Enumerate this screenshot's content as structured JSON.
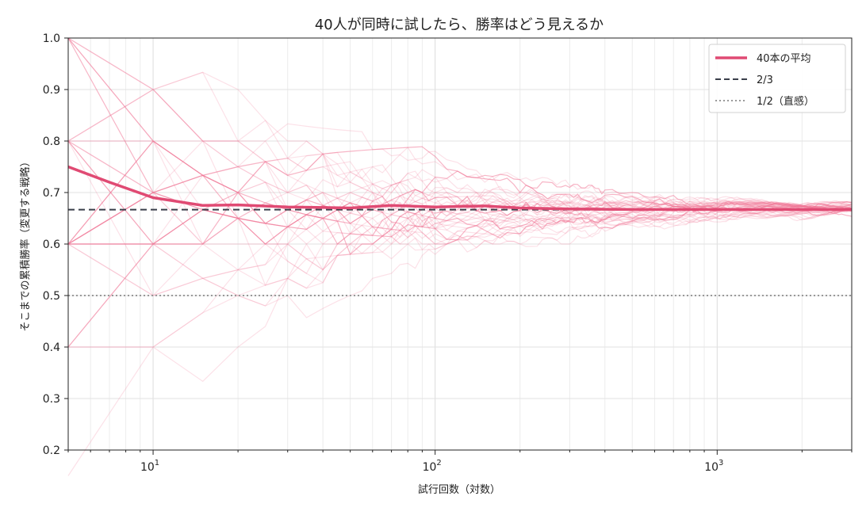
{
  "chart_data": {
    "type": "line",
    "title": "40人が同時に試したら、勝率はどう見えるか",
    "xlabel": "試行回数（対数）",
    "ylabel": "そこまでの累積勝率（変更する戦略）",
    "x_scale": "log",
    "xlim": [
      5,
      3000
    ],
    "ylim": [
      0.2,
      1.0
    ],
    "y_ticks": [
      "0.2",
      "0.3",
      "0.4",
      "0.5",
      "0.6",
      "0.7",
      "0.8",
      "0.9",
      "1.0"
    ],
    "x_ticks": [
      {
        "base": "10",
        "exp": "1"
      },
      {
        "base": "10",
        "exp": "2"
      },
      {
        "base": "10",
        "exp": "3"
      }
    ],
    "grid": true,
    "legend_position": "top-right",
    "legend": [
      {
        "label": "40本の平均",
        "style": "solid-thick",
        "color": "#e04a73"
      },
      {
        "label": "2/3",
        "style": "dashed",
        "color": "#3a3f4a"
      },
      {
        "label": "1/2（直感）",
        "style": "dotted",
        "color": "#999999"
      }
    ],
    "reference_lines": [
      {
        "label": "2/3",
        "y": 0.6667
      },
      {
        "label": "1/2（直感）",
        "y": 0.5
      }
    ],
    "trial_count": 40,
    "trial_color": "#f07898",
    "mean_series": {
      "name": "40本の平均",
      "x": [
        5,
        7,
        10,
        15,
        20,
        30,
        40,
        50,
        70,
        100,
        150,
        200,
        300,
        500,
        1000,
        2000,
        3000
      ],
      "y": [
        0.75,
        0.72,
        0.69,
        0.675,
        0.676,
        0.672,
        0.671,
        0.67,
        0.675,
        0.672,
        0.674,
        0.67,
        0.668,
        0.667,
        0.667,
        0.667,
        0.667
      ]
    },
    "individual_series_sample": [
      {
        "x": [
          5,
          10,
          15,
          20,
          30,
          40,
          60,
          100,
          200,
          500,
          1000,
          3000
        ],
        "y": [
          1.0,
          0.5,
          0.6,
          0.55,
          0.6,
          0.62,
          0.63,
          0.65,
          0.66,
          0.665,
          0.667,
          0.667
        ]
      },
      {
        "x": [
          5,
          10,
          15,
          20,
          30,
          40,
          60,
          100,
          200,
          500,
          1000,
          3000
        ],
        "y": [
          0.0,
          0.67,
          0.64,
          0.62,
          0.6,
          0.61,
          0.63,
          0.64,
          0.655,
          0.662,
          0.666,
          0.667
        ]
      },
      {
        "x": [
          5,
          10,
          15,
          20,
          30,
          40,
          60,
          100,
          200,
          500,
          1000,
          3000
        ],
        "y": [
          1.0,
          0.83,
          0.73,
          0.7,
          0.72,
          0.7,
          0.69,
          0.68,
          0.675,
          0.67,
          0.668,
          0.667
        ]
      }
    ]
  }
}
